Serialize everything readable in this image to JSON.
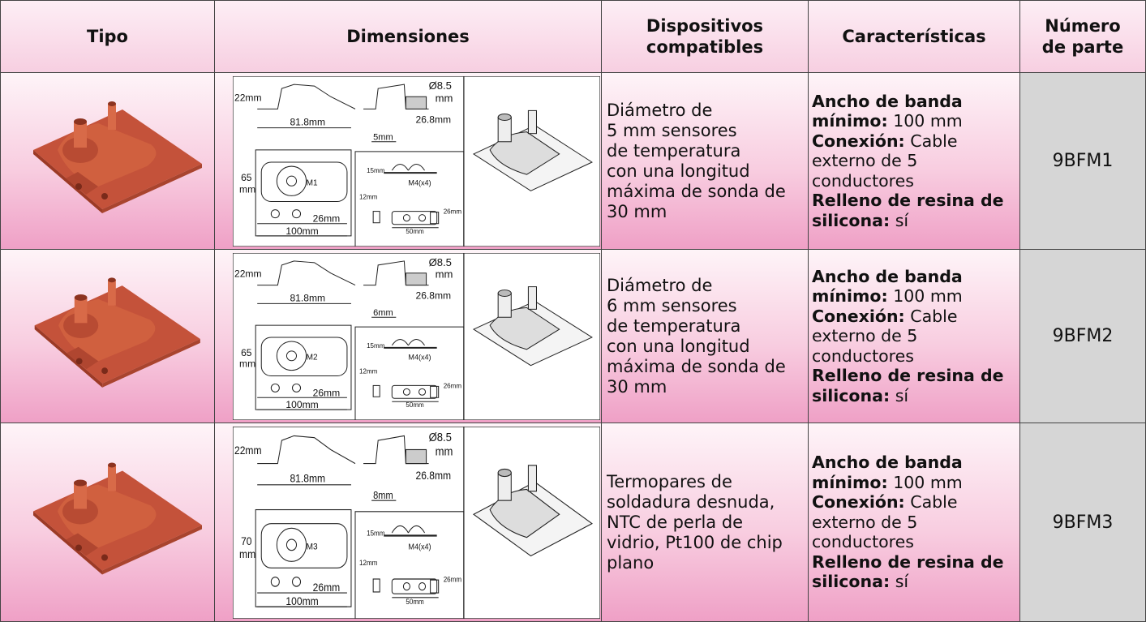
{
  "header": [
    "Tipo",
    "Dimensiones",
    "Dispositivos compatibles",
    "Características",
    "Número de parte"
  ],
  "rows": [
    {
      "devices": [
        "Diámetro de",
        "5 mm sensores",
        "de temperatura",
        "con una longitud",
        "máxima de sonda de",
        "30 mm"
      ],
      "features": [
        {
          "label": "Ancho de banda mínimo:",
          "text": "100 mm"
        },
        {
          "label": "Conexión:",
          "text": "Cable externo de 5 conductores"
        },
        {
          "label": "Relleno de resina de silicona:",
          "text": "sí"
        }
      ],
      "part": "9BFM1",
      "drawing": {
        "height": "22mm",
        "length": "81.8mm",
        "diameter": "Ø8.5",
        "diameter_unit": "mm",
        "flange": "26.8mm",
        "width": "5mm",
        "body_height": "65",
        "body_height_unit": "mm",
        "model": "M1",
        "cable_height": "15mm",
        "screws": "M4(x4)",
        "gap": "12mm",
        "clamp_height": "26mm",
        "side": "26mm",
        "clamp_width": "50mm",
        "base": "100mm"
      }
    },
    {
      "devices": [
        "Diámetro de",
        "6 mm sensores",
        "de temperatura",
        "con una longitud",
        "máxima de sonda de",
        "30 mm"
      ],
      "features": [
        {
          "label": "Ancho de banda mínimo:",
          "text": "100 mm"
        },
        {
          "label": "Conexión:",
          "text": "Cable externo de 5 conductores"
        },
        {
          "label": "Relleno de resina de silicona:",
          "text": "sí"
        }
      ],
      "part": "9BFM2",
      "drawing": {
        "height": "22mm",
        "length": "81.8mm",
        "diameter": "Ø8.5",
        "diameter_unit": "mm",
        "flange": "26.8mm",
        "width": "6mm",
        "body_height": "65",
        "body_height_unit": "mm",
        "model": "M2",
        "cable_height": "15mm",
        "screws": "M4(x4)",
        "gap": "12mm",
        "clamp_height": "26mm",
        "side": "26mm",
        "clamp_width": "50mm",
        "base": "100mm"
      }
    },
    {
      "devices": [
        "Termopares de",
        "soldadura desnuda,",
        "NTC de perla de",
        "vidrio, Pt100 de chip",
        "plano"
      ],
      "features": [
        {
          "label": "Ancho de banda mínimo:",
          "text": "100 mm"
        },
        {
          "label": "Conexión:",
          "text": "Cable externo de 5 conductores"
        },
        {
          "label": "Relleno de resina de silicona:",
          "text": "sí"
        }
      ],
      "part": "9BFM3",
      "drawing": {
        "height": "22mm",
        "length": "81.8mm",
        "diameter": "Ø8.5",
        "diameter_unit": "mm",
        "flange": "26.8mm",
        "width": "8mm",
        "body_height": "70",
        "body_height_unit": "mm",
        "model": "M3",
        "cable_height": "15mm",
        "screws": "M4(x4)",
        "gap": "12mm",
        "clamp_height": "26mm",
        "side": "26mm",
        "clamp_width": "50mm",
        "base": "100mm"
      }
    }
  ]
}
